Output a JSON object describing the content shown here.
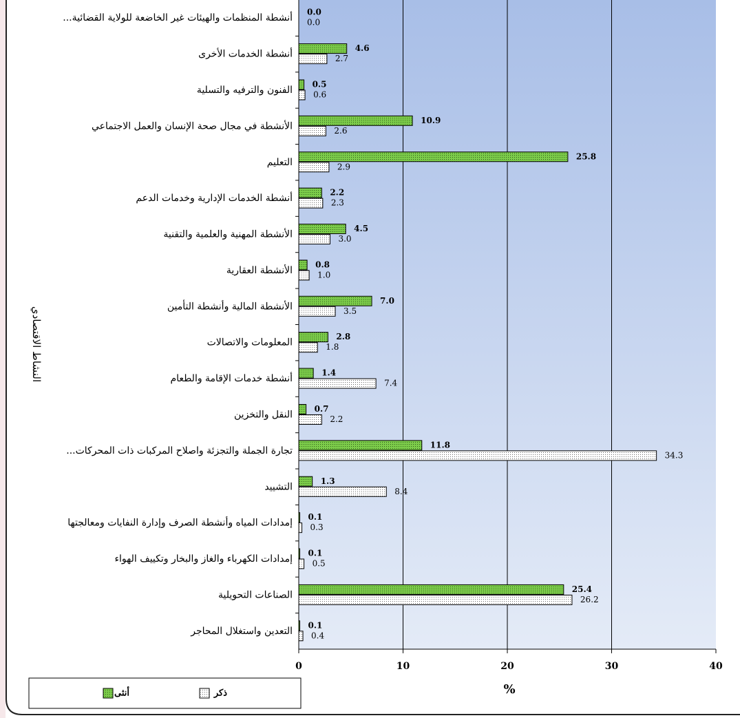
{
  "chart_data": {
    "type": "hbar",
    "categories": [
      "أنشطة المنظمات والهيئات غير الخاضعة للولاية القضائية...",
      "أنشطة الخدمات الأخرى",
      "الفنون والترفيه والتسلية",
      "الأنشطة في مجال صحة الإنسان والعمل الاجتماعي",
      "التعليم",
      "أنشطة الخدمات الإدارية وخدمات الدعم",
      "الأنشطة المهنية والعلمية والتقنية",
      "الأنشطة العقارية",
      "الأنشطة المالية وأنشطة التأمين",
      "المعلومات والاتصالات",
      "أنشطة خدمات الإقامة والطعام",
      "النقل والتخزين",
      "تجارة الجملة والتجزئة واصلاح المركبات ذات المحركات...",
      "التشييد",
      "إمدادات المياه وأنشطة الصرف وإدارة النفايات ومعالجتها",
      "إمدادات الكهرباء والغاز والبخار وتكييف الهواء",
      "الصناعات التحويلية",
      "التعدين واستغلال المحاجر"
    ],
    "series": [
      {
        "name": "أنثى",
        "color": "#7ccc4a",
        "values": [
          0.0,
          4.6,
          0.5,
          10.9,
          25.8,
          2.2,
          4.5,
          0.8,
          7.0,
          2.8,
          1.4,
          0.7,
          11.8,
          1.3,
          0.1,
          0.1,
          25.4,
          0.1
        ],
        "value_labels": [
          "0.0",
          "4.6",
          "0.5",
          "10.9",
          "25.8",
          "2.2",
          "4.5",
          "0.8",
          "7.0",
          "2.8",
          "1.4",
          "0.7",
          "11.8",
          "1.3",
          "0.1",
          "0.1",
          "25.4",
          "0.1"
        ]
      },
      {
        "name": "ذكر",
        "color": "#ffffff",
        "values": [
          0.0,
          2.7,
          0.6,
          2.6,
          2.9,
          2.3,
          3.0,
          1.0,
          3.5,
          1.8,
          7.4,
          2.2,
          34.3,
          8.4,
          0.3,
          0.5,
          26.2,
          0.4
        ],
        "value_labels": [
          "0.0",
          "2.7",
          "0.6",
          "2.6",
          "2.9",
          "2.3",
          "3.0",
          "1.0",
          "3.5",
          "1.8",
          "7.4",
          "2.2",
          "34.3",
          "8.4",
          "0.3",
          "0.5",
          "26.2",
          "0.4"
        ]
      }
    ],
    "y_label": "النشاط الاقتصادي",
    "x_label": "%",
    "xlim": [
      0,
      40
    ],
    "xticks": [
      0,
      10,
      20,
      30,
      40
    ],
    "grid": true,
    "legend": "bottom-left"
  }
}
